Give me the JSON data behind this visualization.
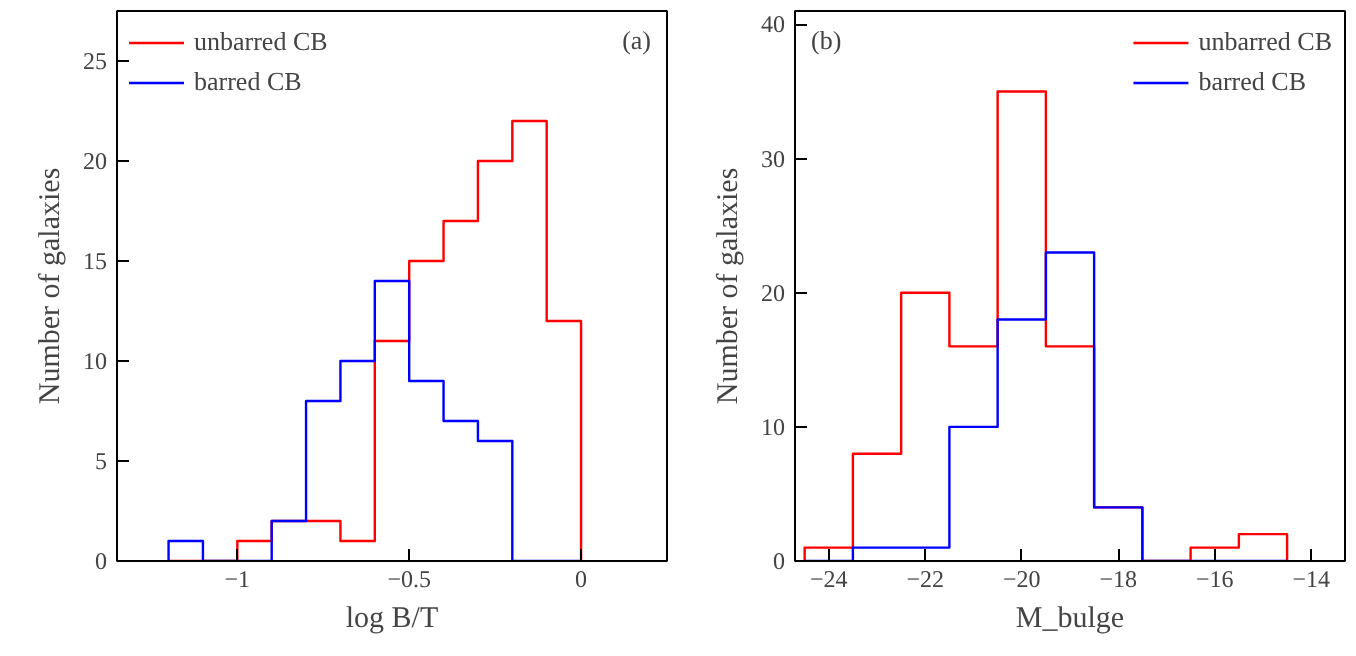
{
  "chart_data": [
    {
      "type": "histogram",
      "xlabel": "log B/T",
      "ylabel": "Number of galaxies",
      "annotations": [
        "(a)"
      ],
      "bins": [
        -1.2,
        -1.1,
        -1.0,
        -0.9,
        -0.8,
        -0.7,
        -0.6,
        -0.5,
        -0.4,
        -0.3,
        -0.2,
        -0.1,
        0
      ],
      "series": [
        {
          "name": "unbarred CB",
          "color": "#ff0000",
          "values": [
            0,
            0,
            1,
            2,
            2,
            1,
            11,
            15,
            17,
            20,
            22,
            12
          ]
        },
        {
          "name": "barred CB",
          "color": "#0000ff",
          "values": [
            1,
            0,
            0,
            2,
            8,
            10,
            14,
            9,
            7,
            6,
            0,
            0
          ]
        }
      ],
      "xlim": [
        -1.35,
        0.25
      ],
      "xticks": [
        {
          "value": -1,
          "label": "−1"
        },
        {
          "value": -0.5,
          "label": "−0.5"
        },
        0
      ],
      "ylim": [
        0,
        27.5
      ],
      "yticks": [
        0,
        5,
        10,
        15,
        20,
        25
      ],
      "grid": false,
      "legend": "top left"
    },
    {
      "type": "histogram",
      "xlabel": "M_bulge",
      "ylabel": "Number of galaxies",
      "annotations": [
        "(b)"
      ],
      "bins": [
        -24.5,
        -23.5,
        -22.5,
        -21.5,
        -20.5,
        -19.5,
        -18.5,
        -17.5,
        -16.5,
        -15.5,
        -14.5
      ],
      "series": [
        {
          "name": "unbarred CB",
          "color": "#ff0000",
          "values": [
            1,
            8,
            20,
            16,
            35,
            16,
            4,
            0,
            1,
            2
          ]
        },
        {
          "name": "barred CB",
          "color": "#0000ff",
          "values": [
            0,
            1,
            1,
            10,
            18,
            23,
            4,
            0,
            0,
            0
          ]
        }
      ],
      "xlim": [
        -24.7,
        -13.3
      ],
      "xticks": [
        {
          "value": -24,
          "label": "−24"
        },
        {
          "value": -22,
          "label": "−22"
        },
        {
          "value": -20,
          "label": "−20"
        },
        {
          "value": -18,
          "label": "−18"
        },
        {
          "value": -16,
          "label": "−16"
        },
        {
          "value": -14,
          "label": "−14"
        }
      ],
      "ylim": [
        0,
        41
      ],
      "yticks": [
        0,
        10,
        20,
        30,
        40
      ],
      "grid": false,
      "legend": "top right"
    }
  ]
}
